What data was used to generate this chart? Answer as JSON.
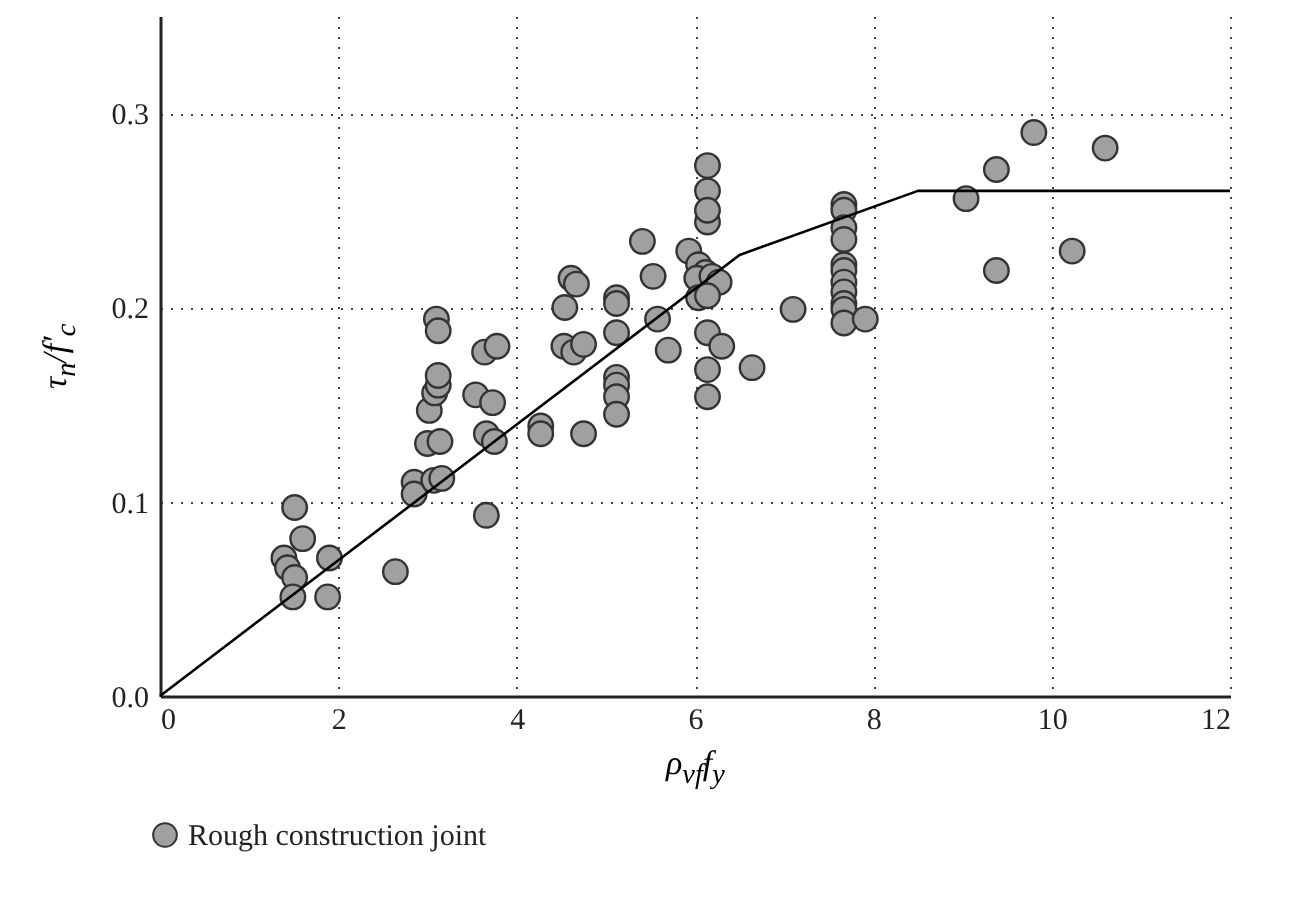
{
  "chart_data": {
    "type": "scatter",
    "xlabel": "ρ$_{vf}$f$_{y}$",
    "ylabel": "τ$_{n}$/f′$_{c}$",
    "xlim": [
      0,
      12
    ],
    "xticks": [
      0,
      2,
      4,
      6,
      8,
      10,
      12
    ],
    "ylim": [
      0,
      0.35
    ],
    "yticks": [
      {
        "value": 0,
        "label": "0.0"
      },
      {
        "value": 0.1,
        "label": "0.1"
      },
      {
        "value": 0.2,
        "label": "0.2"
      },
      {
        "value": 0.3,
        "label": "0.3"
      }
    ],
    "grid": true,
    "legend": "bottom",
    "marker": "circle",
    "series": [
      {
        "name": "Rough construction joint",
        "color": "#a0a0a0",
        "x": [
          1.51,
          1.6,
          1.39,
          1.43,
          1.51,
          1.49,
          1.9,
          1.88,
          2.64,
          2.85,
          2.85,
          3.07,
          3.16,
          3.66,
          3.0,
          3.14,
          3.02,
          3.08,
          3.12,
          3.12,
          3.1,
          3.12,
          3.54,
          3.73,
          3.66,
          3.75,
          3.64,
          3.78,
          4.27,
          4.27,
          4.75,
          4.54,
          4.61,
          4.67,
          4.53,
          4.64,
          4.75,
          5.41,
          5.53,
          5.12,
          5.12,
          5.12,
          5.12,
          5.12,
          5.12,
          5.12,
          5.58,
          5.7,
          5.93,
          6.04,
          6.12,
          6.02,
          6.19,
          6.27,
          6.04,
          6.14,
          6.14,
          6.14,
          6.14,
          6.14,
          6.14,
          6.3,
          6.14,
          6.14,
          6.64,
          7.1,
          7.67,
          7.67,
          7.67,
          7.67,
          7.67,
          7.67,
          7.67,
          7.67,
          7.67,
          7.67,
          7.67,
          7.91,
          9.04,
          9.38,
          9.38,
          10.23,
          9.8,
          10.6
        ],
        "values": [
          0.097,
          0.081,
          0.071,
          0.066,
          0.061,
          0.051,
          0.071,
          0.051,
          0.064,
          0.11,
          0.104,
          0.111,
          0.112,
          0.093,
          0.13,
          0.131,
          0.147,
          0.156,
          0.16,
          0.165,
          0.194,
          0.188,
          0.155,
          0.151,
          0.135,
          0.131,
          0.177,
          0.18,
          0.139,
          0.135,
          0.135,
          0.2,
          0.215,
          0.212,
          0.18,
          0.177,
          0.181,
          0.234,
          0.216,
          0.205,
          0.202,
          0.187,
          0.164,
          0.16,
          0.154,
          0.145,
          0.194,
          0.178,
          0.229,
          0.222,
          0.218,
          0.215,
          0.216,
          0.213,
          0.205,
          0.206,
          0.244,
          0.26,
          0.273,
          0.25,
          0.187,
          0.18,
          0.168,
          0.154,
          0.169,
          0.199,
          0.253,
          0.25,
          0.241,
          0.235,
          0.222,
          0.219,
          0.213,
          0.208,
          0.202,
          0.199,
          0.192,
          0.194,
          0.256,
          0.271,
          0.219,
          0.229,
          0.29,
          0.282
        ]
      },
      {
        "type": "line",
        "color": "#000000",
        "marker": "none",
        "x": [
          0,
          6.5,
          8.5,
          12
        ],
        "values": [
          0,
          0.227,
          0.26,
          0.26
        ]
      }
    ]
  }
}
